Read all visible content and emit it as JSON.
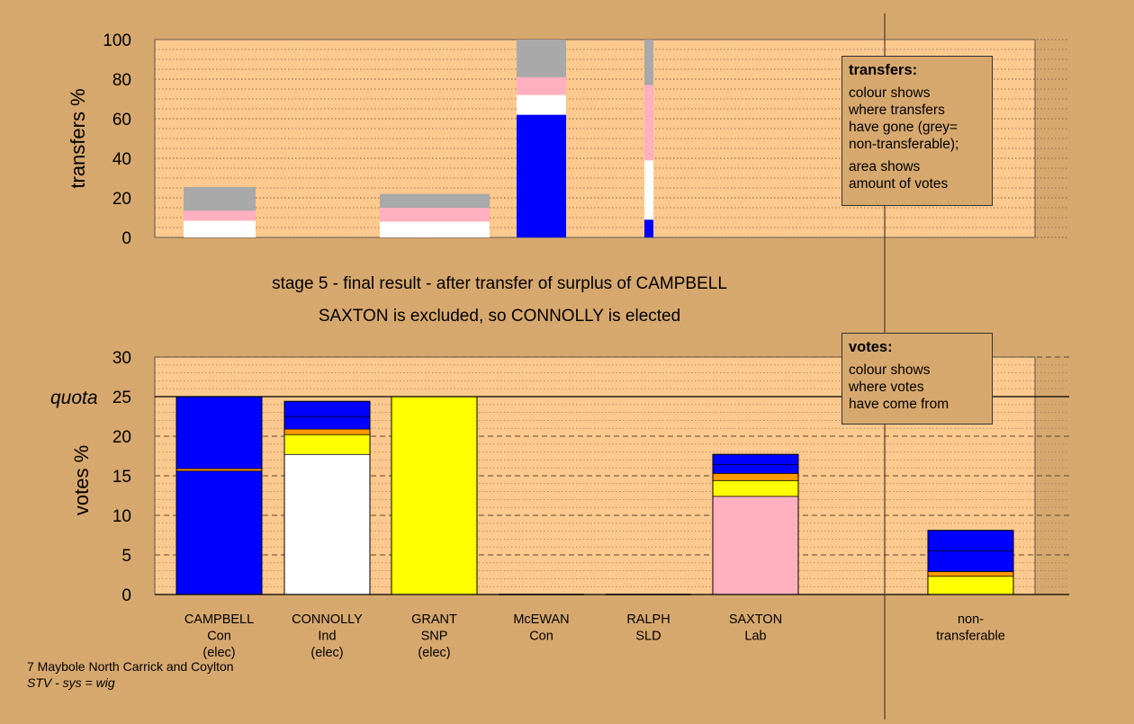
{
  "headings": {
    "line1": "stage 5 - final result - after transfer of surplus of CAMPBELL",
    "line2": "SAXTON is excluded, so CONNOLLY is elected"
  },
  "footer": {
    "line1": "7 Maybole North Carrick and Coylton",
    "line2": "STV - sys = wig"
  },
  "legends": {
    "transfers": {
      "title": "transfers:",
      "p1": "colour shows\nwhere transfers\nhave gone (grey=\nnon-transferable);",
      "p2": "area shows\namount of votes"
    },
    "votes": {
      "title": "votes:",
      "p1": "colour shows\nwhere votes\nhave come from"
    }
  },
  "colors": {
    "background": "#d7a86e",
    "plot_area": "#fcc98e",
    "Con": "#0000ff",
    "Ind": "#ffffff",
    "SNP": "#ffff00",
    "SLD": "#ff9900",
    "Lab": "#ffb0c0",
    "non-transferable": "#a9a9a9"
  },
  "chart_data": [
    {
      "type": "bar",
      "ylabel": "transfers %",
      "ylim": [
        0,
        100
      ],
      "yticks": [
        0,
        20,
        40,
        60,
        80,
        100
      ],
      "grid": "dotted",
      "bars": [
        {
          "label": "CAMPBELL",
          "segments": [
            {
              "color": "Ind",
              "value": 8.5
            },
            {
              "color": "Lab",
              "value": 5
            },
            {
              "color": "non-transferable",
              "value": 12
            }
          ]
        },
        {
          "label": "CONNOLLY",
          "segments": []
        },
        {
          "label": "GRANT",
          "segments": [
            {
              "color": "Ind",
              "value": 8
            },
            {
              "color": "Lab",
              "value": 7
            },
            {
              "color": "non-transferable",
              "value": 7
            }
          ]
        },
        {
          "label": "McEWAN",
          "segments": [
            {
              "color": "Con",
              "value": 62
            },
            {
              "color": "Ind",
              "value": 10
            },
            {
              "color": "Lab",
              "value": 9
            },
            {
              "color": "non-transferable",
              "value": 19
            }
          ]
        },
        {
          "label": "RALPH",
          "segments": [
            {
              "color": "Con",
              "value": 9
            },
            {
              "color": "Ind",
              "value": 30
            },
            {
              "color": "Lab",
              "value": 38
            },
            {
              "color": "non-transferable",
              "value": 23
            }
          ]
        },
        {
          "label": "SAXTON",
          "segments": []
        }
      ]
    },
    {
      "type": "bar",
      "ylabel": "votes %",
      "ylim": [
        0,
        30
      ],
      "yticks": [
        0,
        5,
        10,
        15,
        20,
        25,
        30
      ],
      "quota": {
        "label": "quota",
        "value": 25
      },
      "grid": "dashed",
      "categories": [
        [
          "CAMPBELL",
          "Con",
          "(elec)"
        ],
        [
          "CONNOLLY",
          "Ind",
          "(elec)"
        ],
        [
          "GRANT",
          "SNP",
          "(elec)"
        ],
        [
          "McEWAN",
          "Con"
        ],
        [
          "RALPH",
          "SLD"
        ],
        [
          "SAXTON",
          "Lab"
        ],
        [],
        [
          "non-",
          "transferable"
        ]
      ],
      "bars": [
        {
          "segments": [
            {
              "color": "Con",
              "value": 15.6
            },
            {
              "color": "SLD",
              "value": 0.3
            },
            {
              "color": "Con",
              "value": 9.1
            }
          ]
        },
        {
          "segments": [
            {
              "color": "Ind",
              "value": 17.7
            },
            {
              "color": "SNP",
              "value": 2.5
            },
            {
              "color": "SLD",
              "value": 0.7
            },
            {
              "color": "Con",
              "value": 1.6
            },
            {
              "color": "Con",
              "value": 1.9
            }
          ]
        },
        {
          "segments": [
            {
              "color": "SNP",
              "value": 25
            }
          ]
        },
        {
          "segments": []
        },
        {
          "segments": []
        },
        {
          "segments": [
            {
              "color": "Lab",
              "value": 12.4
            },
            {
              "color": "SNP",
              "value": 2
            },
            {
              "color": "SLD",
              "value": 0.9
            },
            {
              "color": "Con",
              "value": 1.1
            },
            {
              "color": "Con",
              "value": 1.3
            }
          ]
        },
        {
          "segments": []
        },
        {
          "segments": [
            {
              "color": "SNP",
              "value": 2.3
            },
            {
              "color": "SLD",
              "value": 0.6
            },
            {
              "color": "Con",
              "value": 2.6
            },
            {
              "color": "Con",
              "value": 2.6
            }
          ]
        }
      ]
    }
  ]
}
